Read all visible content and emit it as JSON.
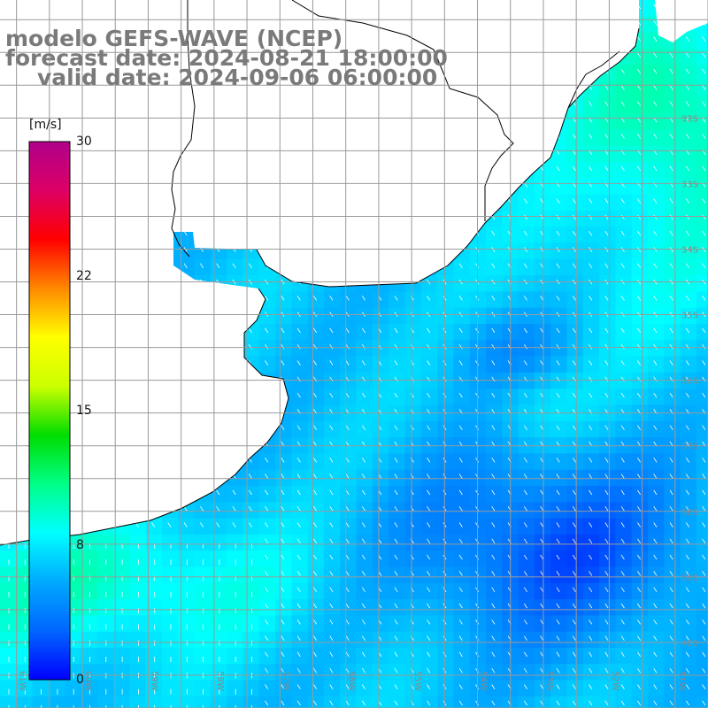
{
  "header": {
    "line1": "modelo GEFS-WAVE (NCEP)",
    "line2": "forecast date: 2024-08-21 18:00:00",
    "line3": "valid date: 2024-09-06 06:00:00"
  },
  "colorbar": {
    "units": "[m/s]",
    "ticks": [
      "30",
      "22",
      "15",
      "8",
      "0"
    ],
    "tick_values": [
      30,
      22,
      15,
      8,
      0
    ],
    "range": [
      0,
      30
    ],
    "colors": [
      "#0000ff",
      "#0066ff",
      "#00aaff",
      "#00ffff",
      "#00ff88",
      "#00dd00",
      "#ccff00",
      "#ffff00",
      "#ff8800",
      "#ff0000",
      "#dd0066",
      "#b0008a"
    ]
  },
  "lat_labels": [
    "32S",
    "33S",
    "34S",
    "35S",
    "36S",
    "37S",
    "38S",
    "39S",
    "40S"
  ],
  "lon_labels": [
    "61W",
    "60W",
    "59W",
    "58W",
    "57W",
    "56W",
    "55W",
    "54W",
    "53W",
    "52W",
    "51W"
  ],
  "map": {
    "lon_range": [
      -61.25,
      -50.5
    ],
    "lat_range": [
      -41.0,
      -30.2
    ],
    "land_color": "#ffffff",
    "grid_color": "#9a9a9a",
    "arrow_color": "#ffffff"
  }
}
